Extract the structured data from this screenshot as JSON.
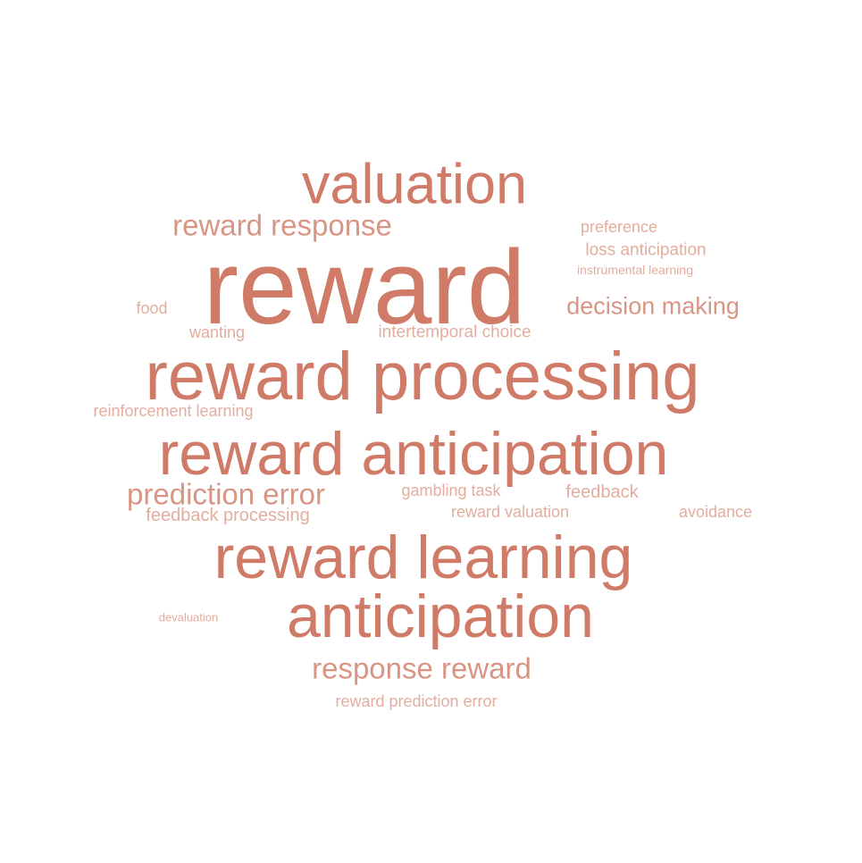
{
  "color": "#cf7b68",
  "words": [
    {
      "text": "reward",
      "weight": 1.0
    },
    {
      "text": "reward processing",
      "weight": 0.62
    },
    {
      "text": "reward anticipation",
      "weight": 0.55
    },
    {
      "text": "reward learning",
      "weight": 0.55
    },
    {
      "text": "anticipation",
      "weight": 0.55
    },
    {
      "text": "valuation",
      "weight": 0.5
    },
    {
      "text": "reward response",
      "weight": 0.28
    },
    {
      "text": "prediction error",
      "weight": 0.28
    },
    {
      "text": "response reward",
      "weight": 0.28
    },
    {
      "text": "decision making",
      "weight": 0.22
    },
    {
      "text": "loss anticipation",
      "weight": 0.15
    },
    {
      "text": "preference",
      "weight": 0.14
    },
    {
      "text": "instrumental learning",
      "weight": 0.12
    },
    {
      "text": "food",
      "weight": 0.14
    },
    {
      "text": "wanting",
      "weight": 0.14
    },
    {
      "text": "intertemporal choice",
      "weight": 0.15
    },
    {
      "text": "reinforcement learning",
      "weight": 0.14
    },
    {
      "text": "gambling task",
      "weight": 0.14
    },
    {
      "text": "feedback",
      "weight": 0.15
    },
    {
      "text": "feedback processing",
      "weight": 0.15
    },
    {
      "text": "reward valuation",
      "weight": 0.14
    },
    {
      "text": "avoidance",
      "weight": 0.14
    },
    {
      "text": "devaluation",
      "weight": 0.11
    },
    {
      "text": "reward prediction error",
      "weight": 0.14
    }
  ]
}
